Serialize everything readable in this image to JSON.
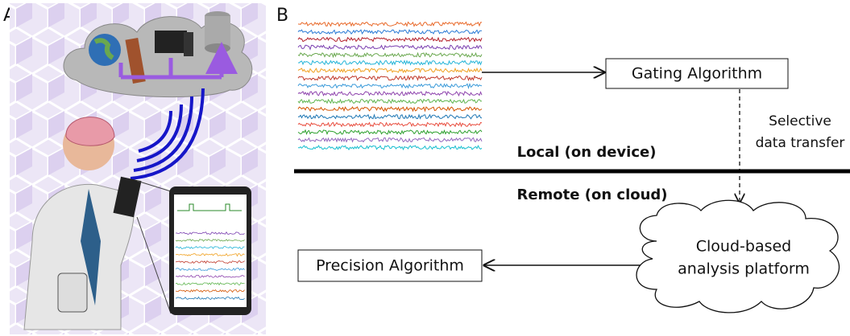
{
  "panel_a": {
    "label": "A"
  },
  "panel_b": {
    "label": "B",
    "gating": "Gating Algorithm",
    "transfer": [
      "Selective",
      "data transfer"
    ],
    "local": "Local (on device)",
    "remote": "Remote (on cloud)",
    "cloud": [
      "Cloud-based",
      "analysis platform"
    ],
    "precision": "Precision Algorithm"
  }
}
